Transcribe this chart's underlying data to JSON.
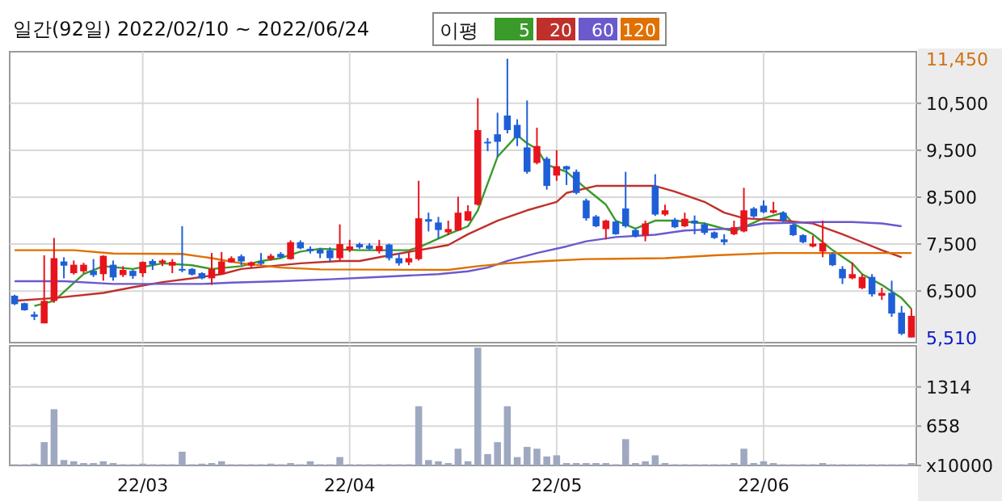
{
  "chart_data": [
    {
      "type": "candlestick",
      "title": "일간(92일) 2022/02/10 ~ 2022/06/24",
      "legend": "top right",
      "legend_title": "이평",
      "grid": true,
      "tick_labels": "y",
      "categories": [
        null,
        null,
        null,
        null,
        null,
        null,
        null,
        null,
        null,
        null,
        null,
        null,
        null,
        null,
        null,
        null,
        null,
        null,
        null,
        null,
        null,
        null,
        null,
        null,
        null,
        null,
        null,
        null,
        null,
        null,
        null,
        null,
        null,
        null,
        null,
        null,
        null,
        null,
        null,
        null,
        null,
        null,
        null,
        null,
        null,
        null,
        null,
        null,
        null,
        null,
        null,
        null,
        null,
        null,
        null,
        null,
        null,
        null,
        null,
        null,
        null,
        null,
        null,
        null,
        null,
        null,
        null,
        null,
        null,
        null,
        null,
        null,
        null,
        null,
        null,
        null,
        null,
        null,
        null,
        null,
        null,
        null,
        null,
        null,
        null,
        null,
        null,
        null,
        null,
        null,
        null,
        null
      ],
      "ylim": [
        5400,
        11600
      ],
      "yticks": [
        {
          "value": 6500,
          "label": "6,500"
        },
        {
          "value": 7500,
          "label": "7,500"
        },
        {
          "value": 8500,
          "label": "8,500"
        },
        {
          "value": 9500,
          "label": "9,500"
        },
        {
          "value": 10500,
          "label": "10,500"
        }
      ],
      "annotations": [
        "11,450",
        "5,510"
      ],
      "ohlc": [
        [
          6400,
          6420,
          6200,
          6220
        ],
        [
          6240,
          6250,
          6080,
          6090
        ],
        [
          6000,
          6060,
          5880,
          5950
        ],
        [
          5810,
          7260,
          5810,
          6290
        ],
        [
          6290,
          7630,
          6250,
          7200
        ],
        [
          7130,
          7220,
          6770,
          7040
        ],
        [
          6880,
          7150,
          6850,
          7060
        ],
        [
          6920,
          7100,
          6880,
          7060
        ],
        [
          6930,
          7180,
          6800,
          6840
        ],
        [
          6860,
          7260,
          6720,
          7250
        ],
        [
          7060,
          7150,
          6720,
          6790
        ],
        [
          6840,
          7030,
          6800,
          6950
        ],
        [
          6930,
          6950,
          6760,
          6820
        ],
        [
          6880,
          7130,
          6800,
          7120
        ],
        [
          7140,
          7180,
          6950,
          7060
        ],
        [
          7100,
          7180,
          7030,
          7150
        ],
        [
          7040,
          7180,
          6880,
          7120
        ],
        [
          6970,
          7880,
          6900,
          6940
        ],
        [
          6970,
          6990,
          6830,
          6850
        ],
        [
          6880,
          6900,
          6750,
          6770
        ],
        [
          6770,
          7310,
          6630,
          6970
        ],
        [
          6860,
          7330,
          6850,
          7130
        ],
        [
          7110,
          7240,
          7100,
          7200
        ],
        [
          7240,
          7280,
          7050,
          7130
        ],
        [
          7040,
          7130,
          7000,
          7110
        ],
        [
          7130,
          7310,
          7050,
          7080
        ],
        [
          7180,
          7290,
          7150,
          7250
        ],
        [
          7290,
          7330,
          7200,
          7220
        ],
        [
          7180,
          7580,
          7170,
          7540
        ],
        [
          7540,
          7580,
          7390,
          7410
        ],
        [
          7400,
          7450,
          7300,
          7350
        ],
        [
          7380,
          7420,
          7200,
          7300
        ],
        [
          7370,
          7430,
          7130,
          7200
        ],
        [
          7200,
          7920,
          7130,
          7500
        ],
        [
          7370,
          7590,
          7330,
          7450
        ],
        [
          7500,
          7530,
          7400,
          7430
        ],
        [
          7470,
          7520,
          7370,
          7400
        ],
        [
          7350,
          7590,
          7300,
          7460
        ],
        [
          7490,
          7510,
          7150,
          7200
        ],
        [
          7200,
          7310,
          7040,
          7090
        ],
        [
          7110,
          7340,
          7050,
          7200
        ],
        [
          7180,
          8850,
          7150,
          8050
        ],
        [
          8030,
          8170,
          7770,
          7980
        ],
        [
          7960,
          8080,
          7620,
          7800
        ],
        [
          7750,
          8000,
          7690,
          7820
        ],
        [
          7790,
          8510,
          7780,
          8170
        ],
        [
          8000,
          8330,
          7990,
          8200
        ],
        [
          8340,
          10610,
          8320,
          9930
        ],
        [
          9680,
          9760,
          9480,
          9650
        ],
        [
          9840,
          10300,
          9360,
          9680
        ],
        [
          10240,
          11450,
          9860,
          9930
        ],
        [
          10040,
          10160,
          9590,
          9760
        ],
        [
          9560,
          10560,
          9000,
          9040
        ],
        [
          9230,
          9980,
          9200,
          9590
        ],
        [
          9320,
          9360,
          8660,
          8740
        ],
        [
          8960,
          9500,
          8850,
          9160
        ],
        [
          9160,
          9170,
          8760,
          9090
        ],
        [
          9040,
          9090,
          8560,
          8590
        ],
        [
          8430,
          8470,
          8000,
          8050
        ],
        [
          8090,
          8120,
          7860,
          7880
        ],
        [
          7820,
          8020,
          7600,
          8000
        ],
        [
          7980,
          8000,
          7700,
          7710
        ],
        [
          8260,
          9040,
          7850,
          7880
        ],
        [
          7800,
          7830,
          7640,
          7660
        ],
        [
          7680,
          8000,
          7560,
          7940
        ],
        [
          8740,
          8990,
          8100,
          8130
        ],
        [
          8130,
          8340,
          8100,
          8220
        ],
        [
          8020,
          8060,
          7840,
          7860
        ],
        [
          7880,
          8170,
          7860,
          8040
        ],
        [
          8000,
          8110,
          7710,
          7940
        ],
        [
          7920,
          7960,
          7700,
          7740
        ],
        [
          7750,
          7770,
          7610,
          7630
        ],
        [
          7600,
          7710,
          7480,
          7540
        ],
        [
          7710,
          8000,
          7690,
          7860
        ],
        [
          7770,
          8700,
          7750,
          8220
        ],
        [
          8260,
          8290,
          8060,
          8090
        ],
        [
          8320,
          8430,
          8160,
          8180
        ],
        [
          8170,
          8400,
          8150,
          8220
        ],
        [
          8170,
          8200,
          7970,
          8000
        ],
        [
          7910,
          7930,
          7670,
          7690
        ],
        [
          7690,
          7710,
          7520,
          7540
        ],
        [
          7450,
          7680,
          7430,
          7510
        ],
        [
          7340,
          8000,
          7220,
          7520
        ],
        [
          7290,
          7320,
          7030,
          7050
        ],
        [
          6970,
          7030,
          6650,
          6770
        ],
        [
          6770,
          7110,
          6750,
          6860
        ],
        [
          6560,
          6860,
          6540,
          6800
        ],
        [
          6800,
          6860,
          6380,
          6430
        ],
        [
          6400,
          6570,
          6310,
          6460
        ],
        [
          6460,
          6720,
          5950,
          6020
        ],
        [
          6040,
          6180,
          5560,
          5590
        ],
        [
          5510,
          6120,
          5510,
          5970
        ]
      ],
      "series": [
        {
          "name": "5",
          "type": "line",
          "color": "#3a9a2a",
          "values": [
            null,
            null,
            6180,
            null,
            6290,
            null,
            null,
            6860,
            null,
            7030,
            null,
            null,
            6970,
            null,
            null,
            7090,
            null,
            null,
            7050,
            null,
            6970,
            null,
            null,
            7030,
            null,
            7140,
            null,
            7200,
            null,
            7340,
            null,
            7400,
            null,
            null,
            null,
            7370,
            null,
            null,
            null,
            null,
            7370,
            7430,
            null,
            null,
            7710,
            null,
            7880,
            8220,
            8790,
            9360,
            null,
            9820,
            9650,
            9530,
            9190,
            null,
            9040,
            null,
            8680,
            null,
            8340,
            8000,
            null,
            7830,
            null,
            8000,
            null,
            8000,
            null,
            null,
            7940,
            null,
            null,
            7770,
            null,
            null,
            8050,
            null,
            8170,
            7940,
            null,
            7710,
            null,
            7370,
            null,
            7090,
            6860,
            null,
            6630,
            null,
            6350,
            6120
          ]
        },
        {
          "name": "20",
          "type": "line",
          "color": "#c0302a",
          "values": [
            6290,
            null,
            null,
            null,
            6350,
            null,
            null,
            null,
            null,
            6460,
            null,
            null,
            6580,
            null,
            null,
            6690,
            null,
            null,
            6770,
            null,
            null,
            6860,
            null,
            6970,
            null,
            null,
            7030,
            null,
            null,
            7090,
            null,
            null,
            null,
            7140,
            null,
            7140,
            null,
            null,
            7260,
            null,
            null,
            7370,
            null,
            null,
            7480,
            null,
            7710,
            null,
            null,
            8000,
            null,
            null,
            8220,
            null,
            null,
            8400,
            8590,
            null,
            null,
            8740,
            null,
            null,
            null,
            null,
            null,
            8740,
            null,
            8620,
            null,
            null,
            8400,
            null,
            8170,
            null,
            8050,
            null,
            null,
            null,
            8000,
            null,
            null,
            7940,
            null,
            null,
            7710,
            null,
            7540,
            null,
            7370,
            null,
            7220,
            null
          ]
        },
        {
          "name": "60",
          "type": "line",
          "color": "#6a5acd",
          "values": [
            6710,
            null,
            null,
            null,
            null,
            6710,
            null,
            null,
            null,
            null,
            6650,
            null,
            null,
            null,
            null,
            null,
            null,
            null,
            null,
            6650,
            null,
            null,
            6680,
            null,
            null,
            null,
            null,
            6710,
            null,
            null,
            null,
            null,
            6750,
            null,
            null,
            null,
            null,
            6800,
            null,
            null,
            null,
            null,
            null,
            6860,
            null,
            null,
            6920,
            null,
            7000,
            null,
            7140,
            null,
            null,
            7310,
            null,
            null,
            7450,
            null,
            7560,
            null,
            null,
            7650,
            null,
            null,
            null,
            7700,
            null,
            null,
            7790,
            null,
            null,
            null,
            null,
            7830,
            null,
            null,
            7940,
            null,
            null,
            null,
            null,
            null,
            7970,
            null,
            null,
            7970,
            null,
            null,
            7940,
            null,
            7880,
            null
          ]
        },
        {
          "name": "120",
          "type": "line",
          "color": "#e07000",
          "values": [
            7370,
            null,
            null,
            null,
            null,
            null,
            7370,
            null,
            null,
            null,
            7300,
            null,
            null,
            null,
            null,
            null,
            null,
            7290,
            null,
            null,
            7200,
            null,
            null,
            7090,
            null,
            null,
            null,
            7000,
            null,
            null,
            null,
            6960,
            null,
            null,
            null,
            null,
            null,
            null,
            null,
            null,
            null,
            null,
            null,
            null,
            6950,
            null,
            null,
            7030,
            null,
            null,
            7090,
            null,
            null,
            null,
            7140,
            null,
            null,
            null,
            7180,
            null,
            null,
            null,
            null,
            null,
            null,
            null,
            7200,
            null,
            null,
            null,
            null,
            7260,
            null,
            null,
            null,
            null,
            null,
            7310,
            null,
            null,
            null,
            null,
            null,
            null,
            null,
            null,
            null,
            null,
            null,
            null,
            null,
            7310
          ]
        }
      ]
    },
    {
      "type": "bar",
      "grid": true,
      "color": "#9ea8c0",
      "categories": [
        null,
        null,
        null,
        null,
        null,
        null,
        null,
        null,
        null,
        null,
        null,
        null,
        null,
        "22/03",
        null,
        null,
        null,
        null,
        null,
        null,
        null,
        null,
        null,
        null,
        null,
        null,
        null,
        null,
        null,
        null,
        null,
        null,
        null,
        null,
        "22/04",
        null,
        null,
        null,
        null,
        null,
        null,
        null,
        null,
        null,
        null,
        null,
        null,
        null,
        null,
        null,
        null,
        null,
        null,
        null,
        null,
        "22/05",
        null,
        null,
        null,
        null,
        null,
        null,
        null,
        null,
        null,
        null,
        null,
        null,
        null,
        null,
        null,
        null,
        null,
        null,
        null,
        null,
        "22/06",
        null,
        null,
        null,
        null,
        null,
        null,
        null,
        null,
        null,
        null,
        null,
        null,
        null,
        null,
        null
      ],
      "ylim": [
        0,
        2000
      ],
      "yticks": [
        {
          "value": 0,
          "label": "x10000"
        },
        658,
        1314
      ],
      "values": [
        20,
        20,
        30,
        390,
        940,
        90,
        70,
        40,
        40,
        70,
        40,
        20,
        20,
        30,
        20,
        20,
        20,
        230,
        20,
        30,
        40,
        70,
        20,
        20,
        20,
        20,
        30,
        20,
        40,
        20,
        70,
        20,
        20,
        140,
        20,
        20,
        20,
        20,
        20,
        20,
        20,
        990,
        90,
        70,
        40,
        280,
        70,
        1970,
        190,
        390,
        990,
        140,
        310,
        280,
        150,
        170,
        40,
        40,
        40,
        40,
        40,
        20,
        440,
        40,
        70,
        170,
        40,
        20,
        20,
        20,
        20,
        20,
        20,
        40,
        280,
        40,
        70,
        40,
        20,
        20,
        20,
        20,
        40,
        20,
        20,
        20,
        20,
        20,
        20,
        20,
        20,
        40
      ]
    }
  ]
}
